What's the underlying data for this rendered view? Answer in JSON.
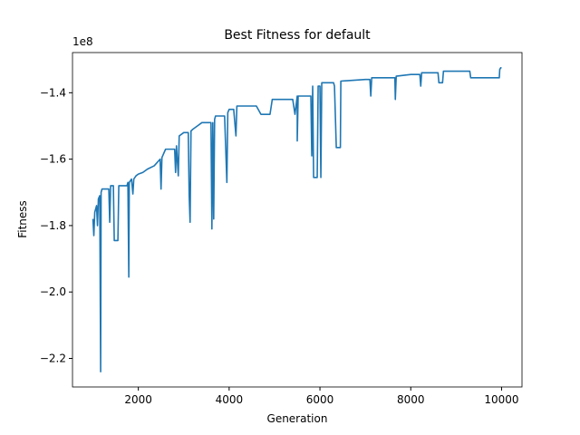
{
  "chart_data": {
    "type": "line",
    "title": "Best Fitness for default",
    "x_label": "Generation",
    "y_label": "Fitness",
    "y_offset_label": "1e8",
    "xlim": [
      550,
      10450
    ],
    "ylim": [
      -2.286,
      -1.279
    ],
    "xticks": [
      2000,
      4000,
      6000,
      8000,
      10000
    ],
    "yticks": [
      {
        "value": -2.2,
        "label": "−2.2"
      },
      {
        "value": -2.0,
        "label": "−2.0"
      },
      {
        "value": -1.8,
        "label": "−1.8"
      },
      {
        "value": -1.6,
        "label": "−1.6"
      },
      {
        "value": -1.4,
        "label": "−1.4"
      }
    ],
    "grid": false,
    "series": [
      {
        "color": "#1f77b4",
        "x": [
          1000,
          1020,
          1040,
          1080,
          1100,
          1120,
          1150,
          1170,
          1180,
          1200,
          1350,
          1370,
          1390,
          1450,
          1470,
          1550,
          1570,
          1750,
          1770,
          1790,
          1800,
          1850,
          1880,
          1900,
          1950,
          2000,
          2100,
          2200,
          2350,
          2480,
          2500,
          2520,
          2600,
          2800,
          2820,
          2840,
          2880,
          2900,
          3000,
          3100,
          3120,
          3140,
          3160,
          3200,
          3300,
          3400,
          3500,
          3600,
          3620,
          3640,
          3660,
          3680,
          3700,
          3900,
          3950,
          3970,
          4000,
          4100,
          4150,
          4170,
          4600,
          4700,
          4900,
          4950,
          5400,
          5450,
          5500,
          5500,
          5520,
          5800,
          5820,
          5840,
          5860,
          5940,
          5960,
          6000,
          6020,
          6040,
          6300,
          6320,
          6360,
          6450,
          6460,
          7000,
          7100,
          7120,
          7140,
          7650,
          7660,
          7680,
          8000,
          8200,
          8220,
          8240,
          8600,
          8620,
          8700,
          8720,
          9300,
          9320,
          9950,
          9960,
          9980,
          10000
        ],
        "values": [
          -1.78,
          -1.83,
          -1.76,
          -1.74,
          -1.8,
          -1.72,
          -1.71,
          -2.24,
          -1.7,
          -1.69,
          -1.69,
          -1.79,
          -1.68,
          -1.68,
          -1.845,
          -1.845,
          -1.68,
          -1.68,
          -1.67,
          -1.955,
          -1.67,
          -1.66,
          -1.705,
          -1.66,
          -1.65,
          -1.645,
          -1.64,
          -1.63,
          -1.62,
          -1.6,
          -1.69,
          -1.595,
          -1.57,
          -1.57,
          -1.64,
          -1.56,
          -1.65,
          -1.53,
          -1.52,
          -1.52,
          -1.71,
          -1.79,
          -1.515,
          -1.51,
          -1.5,
          -1.49,
          -1.49,
          -1.49,
          -1.81,
          -1.49,
          -1.78,
          -1.48,
          -1.47,
          -1.47,
          -1.67,
          -1.46,
          -1.45,
          -1.45,
          -1.53,
          -1.44,
          -1.44,
          -1.465,
          -1.465,
          -1.42,
          -1.42,
          -1.465,
          -1.41,
          -1.545,
          -1.41,
          -1.41,
          -1.59,
          -1.38,
          -1.655,
          -1.655,
          -1.38,
          -1.38,
          -1.655,
          -1.37,
          -1.37,
          -1.38,
          -1.565,
          -1.565,
          -1.365,
          -1.36,
          -1.36,
          -1.41,
          -1.355,
          -1.355,
          -1.42,
          -1.35,
          -1.345,
          -1.345,
          -1.38,
          -1.34,
          -1.34,
          -1.37,
          -1.37,
          -1.335,
          -1.335,
          -1.355,
          -1.355,
          -1.33,
          -1.325,
          -1.325
        ]
      }
    ]
  }
}
